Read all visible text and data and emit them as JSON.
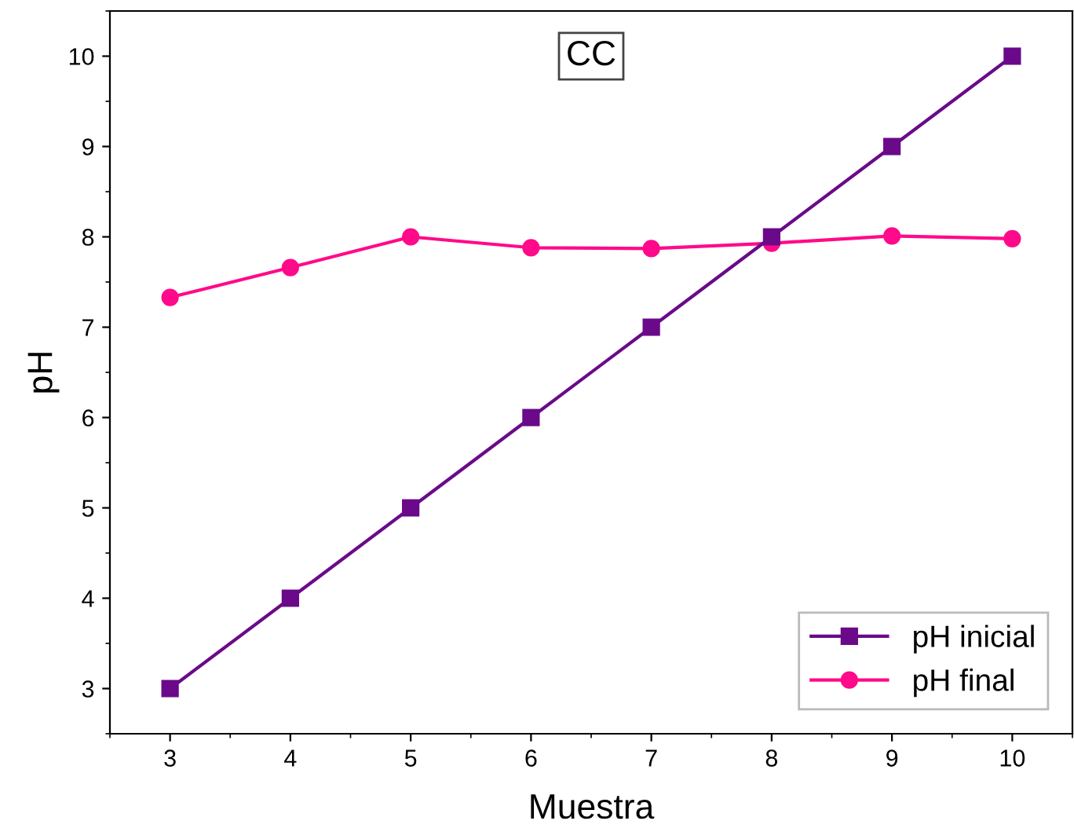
{
  "chart_data": {
    "type": "line",
    "title": "CC",
    "xlabel": "Muestra",
    "ylabel": "pH",
    "x": [
      3,
      4,
      5,
      6,
      7,
      8,
      9,
      10
    ],
    "series": [
      {
        "name": "pH inicial",
        "color": "#6a0a8a",
        "marker": "square",
        "values": [
          3,
          4,
          5,
          6,
          7,
          8,
          9,
          10
        ]
      },
      {
        "name": "pH final",
        "color": "#ff0a8a",
        "marker": "circle",
        "values": [
          7.33,
          7.66,
          8.0,
          7.88,
          7.87,
          7.93,
          8.01,
          7.98
        ]
      }
    ],
    "xlim": [
      2.5,
      10.5
    ],
    "xticks": [
      3,
      4,
      5,
      6,
      7,
      8,
      9,
      10
    ],
    "ylim": [
      2.5,
      10.5
    ],
    "yticks": [
      3,
      4,
      5,
      6,
      7,
      8,
      9,
      10
    ],
    "grid": false,
    "legend": "bottom right"
  }
}
